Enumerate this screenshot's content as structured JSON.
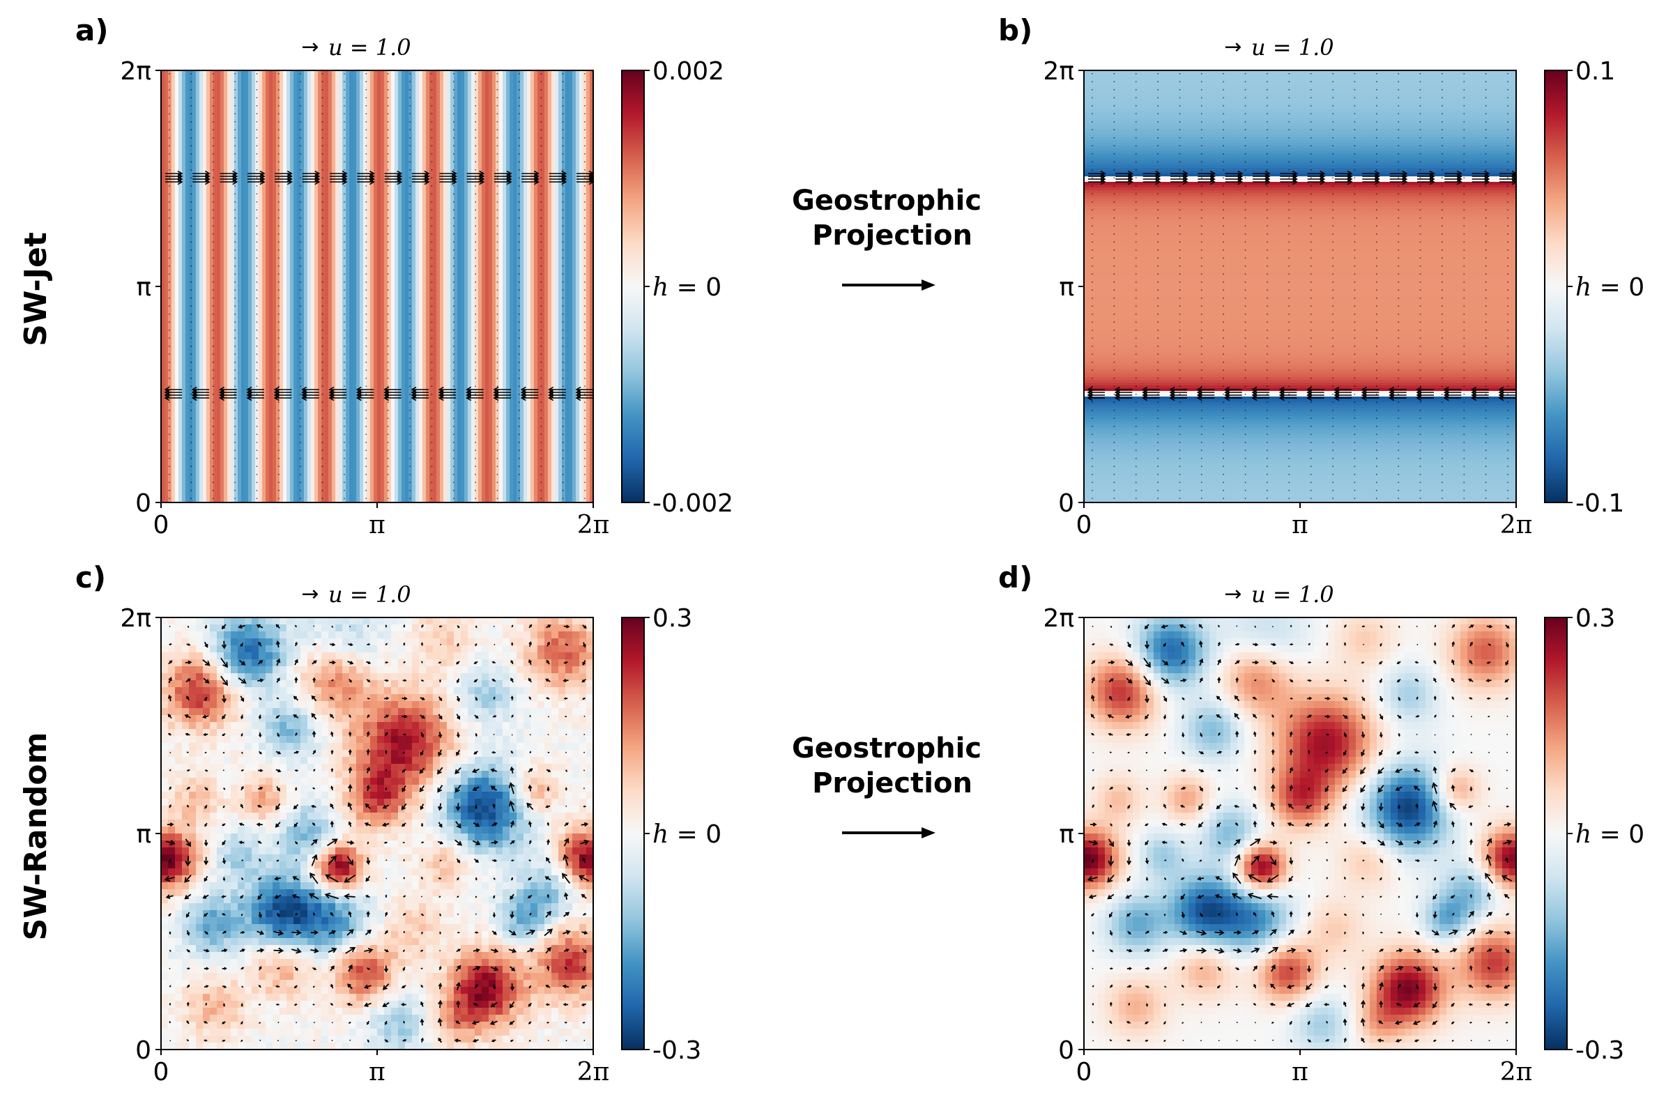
{
  "figure": {
    "row_labels": [
      "SW-Jet",
      "SW-Random"
    ],
    "arrow_label_line1": "Geostrophic",
    "arrow_label_line2": "Projection",
    "colormap": [
      "#053061",
      "#2166ac",
      "#4393c3",
      "#92c5de",
      "#d1e5f0",
      "#f7f7f7",
      "#fddbc7",
      "#f4a582",
      "#d6604d",
      "#b2182b",
      "#67001f"
    ],
    "quiver_key_arrow": "→",
    "colorbar_mid_label_var": "h",
    "colorbar_mid_label_eq": " = 0"
  },
  "chart_data": [
    {
      "type": "heatmap",
      "panel": "a)",
      "title": "u = 1.0",
      "xticks": [
        "0",
        "π",
        "2π"
      ],
      "yticks": [
        "0",
        "π",
        "2π"
      ],
      "xlim": [
        0,
        6.283
      ],
      "ylim": [
        0,
        6.283
      ],
      "field": "stripes",
      "stripe_wavenumber": 8,
      "vmin": -0.002,
      "vmax": 0.002,
      "colorbar_ticks": [
        "0.002",
        "-0.002"
      ],
      "quiver": "jet_bands"
    },
    {
      "type": "heatmap",
      "panel": "b)",
      "title": "u = 1.0",
      "xticks": [
        "0",
        "π",
        "2π"
      ],
      "yticks": [
        "0",
        "π",
        "2π"
      ],
      "xlim": [
        0,
        6.283
      ],
      "ylim": [
        0,
        6.283
      ],
      "field": "jet",
      "vmin": -0.1,
      "vmax": 0.1,
      "colorbar_ticks": [
        "0.1",
        "-0.1"
      ],
      "quiver": "jet_bands_with_dots"
    },
    {
      "type": "heatmap",
      "panel": "c)",
      "title": "u = 1.0",
      "xticks": [
        "0",
        "π",
        "2π"
      ],
      "yticks": [
        "0",
        "π",
        "2π"
      ],
      "xlim": [
        0,
        6.283
      ],
      "ylim": [
        0,
        6.283
      ],
      "field": "random_noisy",
      "vmin": -0.3,
      "vmax": 0.3,
      "colorbar_ticks": [
        "0.3",
        "-0.3"
      ],
      "quiver": "random"
    },
    {
      "type": "heatmap",
      "panel": "d)",
      "title": "u = 1.0",
      "xticks": [
        "0",
        "π",
        "2π"
      ],
      "yticks": [
        "0",
        "π",
        "2π"
      ],
      "xlim": [
        0,
        6.283
      ],
      "ylim": [
        0,
        6.283
      ],
      "field": "random_smooth",
      "vmin": -0.3,
      "vmax": 0.3,
      "colorbar_ticks": [
        "0.3",
        "-0.3"
      ],
      "quiver": "random"
    }
  ]
}
